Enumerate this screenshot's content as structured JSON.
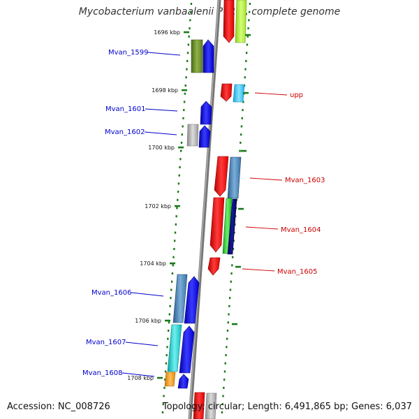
{
  "header": {
    "title": "Mycobacterium vanbaalenii PYR-1, complete genome"
  },
  "footer": {
    "accession": "Accession: NC_008726",
    "summary": "Topology: circular; Length: 6,491,865 bp; Genes: 6,037"
  },
  "colors": {
    "backbone": "#777777",
    "tick": "#1a7a1a",
    "label_forward": "#0000cc",
    "label_reverse": "#cc0000"
  },
  "ticks": [
    {
      "label": "1696 kbp"
    },
    {
      "label": "1698 kbp"
    },
    {
      "label": "1700 kbp"
    },
    {
      "label": "1702 kbp"
    },
    {
      "label": "1704 kbp"
    },
    {
      "label": "1706 kbp"
    },
    {
      "label": "1708 kbp"
    }
  ],
  "gene_labels": [
    {
      "name": "Mvan_1599",
      "strand": "forward"
    },
    {
      "name": "Mvan_1601",
      "strand": "forward"
    },
    {
      "name": "Mvan_1602",
      "strand": "forward"
    },
    {
      "name": "upp",
      "strand": "reverse"
    },
    {
      "name": "Mvan_1603",
      "strand": "reverse"
    },
    {
      "name": "Mvan_1604",
      "strand": "reverse"
    },
    {
      "name": "Mvan_1605",
      "strand": "reverse"
    },
    {
      "name": "Mvan_1606",
      "strand": "forward"
    },
    {
      "name": "Mvan_1607",
      "strand": "forward"
    },
    {
      "name": "Mvan_1608",
      "strand": "forward"
    }
  ]
}
